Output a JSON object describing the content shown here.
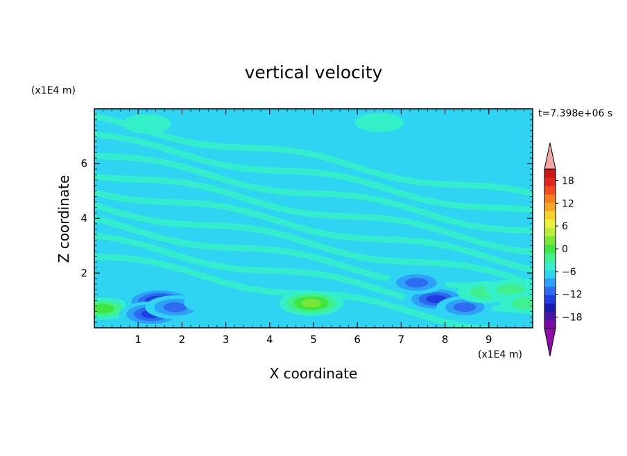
{
  "chart_data": {
    "type": "heatmap",
    "title": "vertical velocity",
    "xlabel": "X coordinate",
    "ylabel": "Z coordinate",
    "x_unit_label": "(x1E4 m)",
    "y_unit_label": "(x1E4 m)",
    "time_label": "t=7.398e+06 s",
    "xlim": [
      0,
      10
    ],
    "ylim": [
      0,
      8
    ],
    "x_ticks": [
      1,
      2,
      3,
      4,
      5,
      6,
      7,
      8,
      9
    ],
    "y_ticks": [
      2,
      4,
      6
    ],
    "colorbar": {
      "range": [
        -21,
        21
      ],
      "step": 3,
      "tick_values": [
        18,
        12,
        6,
        0,
        -6,
        -12,
        -18
      ],
      "tick_labels": [
        "18",
        "12",
        "6",
        "0",
        "−6",
        "−12",
        "−18"
      ],
      "colors": [
        "#7d07a6",
        "#4815a3",
        "#1a1aaf",
        "#1f3ee0",
        "#2d6bf0",
        "#2fa0f7",
        "#2fd4f2",
        "#34f0c8",
        "#40f08e",
        "#3fe63f",
        "#7be63a",
        "#b6ee3a",
        "#e8f23a",
        "#f8d22a",
        "#f8a626",
        "#f57f1e",
        "#f04d1c",
        "#e1261c",
        "#c81818"
      ],
      "over_color": "#f3a6a6",
      "under_color": "#8f0ca8"
    },
    "features": [
      {
        "x": 0.2,
        "z": 0.7,
        "value": 8
      },
      {
        "x": 1.5,
        "z": 0.95,
        "value": -15
      },
      {
        "x": 1.3,
        "z": 0.5,
        "value": -12
      },
      {
        "x": 1.85,
        "z": 0.75,
        "value": -10
      },
      {
        "x": 2.6,
        "z": 0.9,
        "value": -4
      },
      {
        "x": 4.95,
        "z": 0.9,
        "value": 12
      },
      {
        "x": 7.8,
        "z": 1.05,
        "value": -12
      },
      {
        "x": 7.35,
        "z": 1.65,
        "value": -9
      },
      {
        "x": 8.45,
        "z": 0.75,
        "value": -8
      },
      {
        "x": 8.9,
        "z": 1.3,
        "value": 7
      },
      {
        "x": 9.5,
        "z": 1.4,
        "value": 5
      },
      {
        "x": 9.85,
        "z": 0.9,
        "value": 6
      },
      {
        "x": 1.2,
        "z": 7.45,
        "value": 4
      },
      {
        "x": 6.5,
        "z": 7.5,
        "value": 4
      }
    ]
  }
}
